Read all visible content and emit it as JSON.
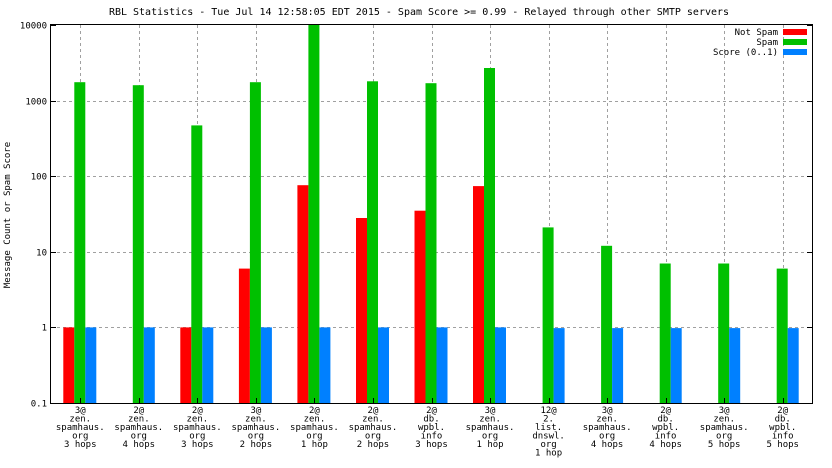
{
  "chart_data": {
    "type": "bar",
    "title": "RBL Statistics - Tue Jul 14 12:58:05 EDT 2015 - Spam Score >= 0.99 - Relayed through other SMTP servers",
    "ylabel": "Message Count or Spam Score",
    "xlabel": "",
    "yscale": "log",
    "ylim": [
      0.1,
      10000
    ],
    "yticks": [
      "0.1",
      "1",
      "10",
      "100",
      "1000",
      "10000"
    ],
    "grid": true,
    "legend_position": "top-right",
    "categories": [
      [
        "3@",
        "zen.",
        "spamhaus.",
        "org",
        "3 hops"
      ],
      [
        "2@",
        "zen.",
        "spamhaus.",
        "org",
        "4 hops"
      ],
      [
        "2@",
        "zen.",
        "spamhaus.",
        "org",
        "3 hops"
      ],
      [
        "3@",
        "zen.",
        "spamhaus.",
        "org",
        "2 hops"
      ],
      [
        "2@",
        "zen.",
        "spamhaus.",
        "org",
        "1 hop"
      ],
      [
        "2@",
        "zen.",
        "spamhaus.",
        "org",
        "2 hops"
      ],
      [
        "2@",
        "db.",
        "wpbl.",
        "info",
        "3 hops"
      ],
      [
        "3@",
        "zen.",
        "spamhaus.",
        "org",
        "1 hop"
      ],
      [
        "12@",
        "2.",
        "list.",
        "dnswl.",
        "org",
        "1 hop"
      ],
      [
        "3@",
        "zen.",
        "spamhaus.",
        "org",
        "4 hops"
      ],
      [
        "2@",
        "db.",
        "wpbl.",
        "info",
        "4 hops"
      ],
      [
        "3@",
        "zen.",
        "spamhaus.",
        "org",
        "5 hops"
      ],
      [
        "2@",
        "db.",
        "wpbl.",
        "info",
        "5 hops"
      ]
    ],
    "series": [
      {
        "name": "Not Spam",
        "color": "#ff0000",
        "values": [
          1,
          null,
          1,
          6,
          76,
          28,
          35,
          74,
          null,
          null,
          null,
          null,
          null
        ]
      },
      {
        "name": "Spam",
        "color": "#00c000",
        "values": [
          1750,
          1600,
          470,
          1750,
          10000,
          1800,
          1700,
          2700,
          21,
          12,
          7,
          7,
          6
        ]
      },
      {
        "name": "Score (0..1)",
        "color": "#0080ff",
        "values": [
          1,
          1,
          1,
          1,
          1,
          1,
          1,
          1,
          0.98,
          0.98,
          0.98,
          0.98,
          0.98
        ]
      }
    ]
  }
}
